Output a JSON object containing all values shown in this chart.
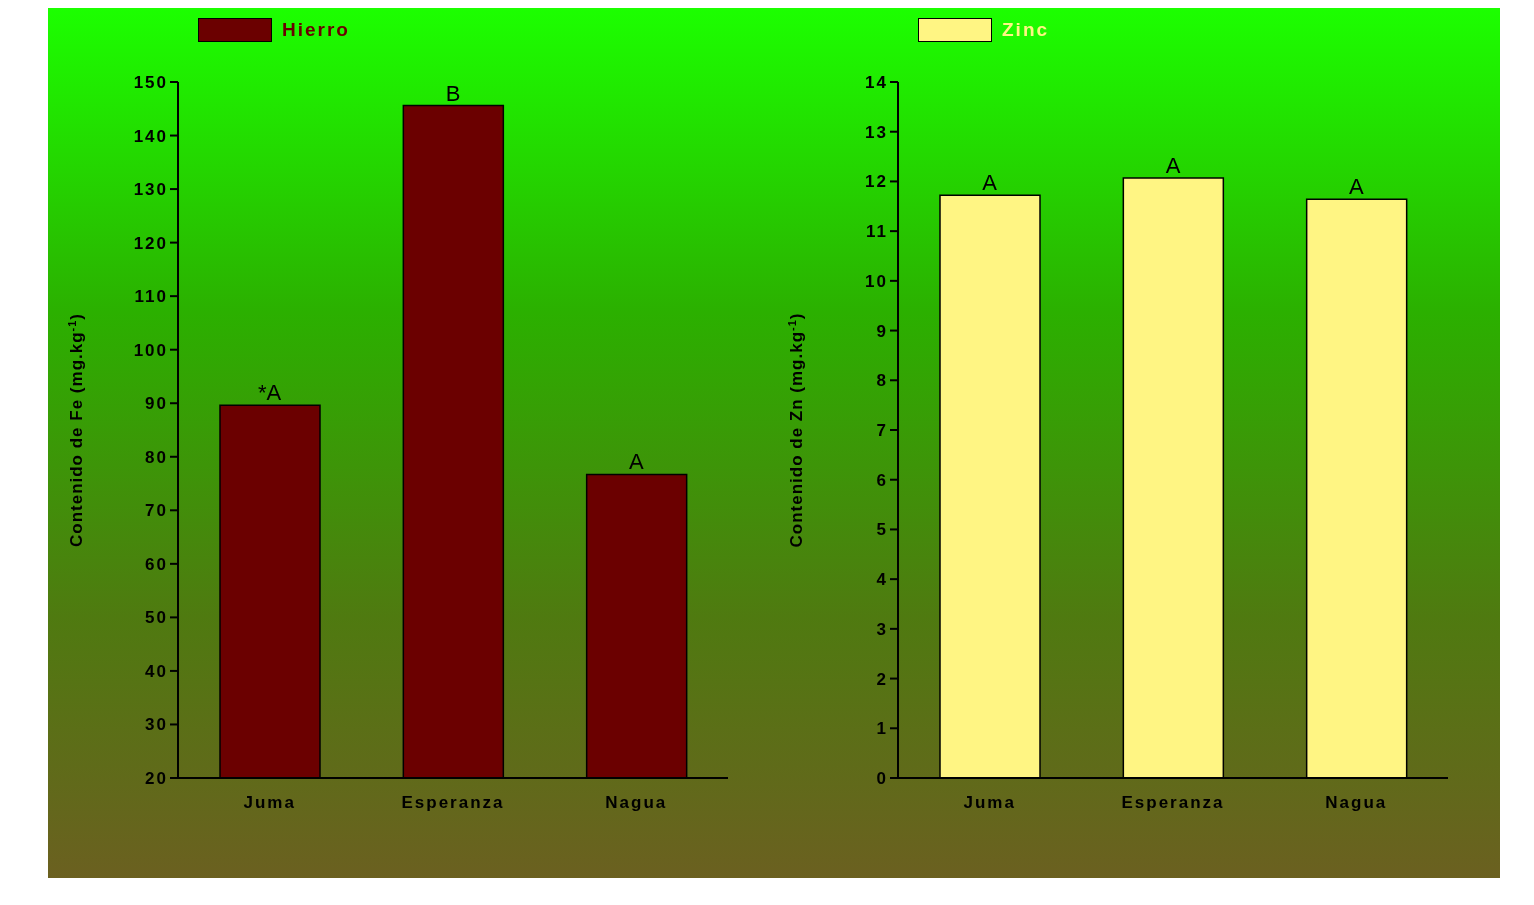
{
  "chart_data": [
    {
      "type": "bar",
      "categories": [
        "Juma",
        "Esperanza",
        "Nagua"
      ],
      "series": [
        {
          "name": "Hierro",
          "color": "#6b0000",
          "values": [
            89.6,
            145.6,
            76.7
          ]
        }
      ],
      "ylabel": "Contenido de Fe (mg.kg$^{-1}$)",
      "ylim": [
        20,
        150
      ],
      "yticks": [
        20,
        30,
        40,
        50,
        60,
        70,
        80,
        90,
        100,
        110,
        120,
        130,
        140,
        150
      ],
      "legend": "top left",
      "grid": false,
      "annotations": [
        {
          "text": "*A",
          "x": "Juma",
          "y": 89.6
        },
        {
          "text": "B",
          "x": "Esperanza",
          "y": 145.6
        },
        {
          "text": "A",
          "x": "Nagua",
          "y": 76.7
        }
      ]
    },
    {
      "type": "bar",
      "categories": [
        "Juma",
        "Esperanza",
        "Nagua"
      ],
      "series": [
        {
          "name": "Zinc",
          "color": "#fff583",
          "values": [
            11.72,
            12.07,
            11.64
          ]
        }
      ],
      "ylabel": "Contenido de Zn (mg.kg$^{-1}$)",
      "ylim": [
        0,
        14
      ],
      "yticks": [
        0,
        1,
        2,
        3,
        4,
        5,
        6,
        7,
        8,
        9,
        10,
        11,
        12,
        13,
        14
      ],
      "legend": "top left",
      "grid": false,
      "annotations": [
        {
          "text": "A",
          "x": "Juma",
          "y": 11.72
        },
        {
          "text": "A",
          "x": "Esperanza",
          "y": 12.07
        },
        {
          "text": "A",
          "x": "Nagua",
          "y": 11.64
        }
      ]
    }
  ]
}
